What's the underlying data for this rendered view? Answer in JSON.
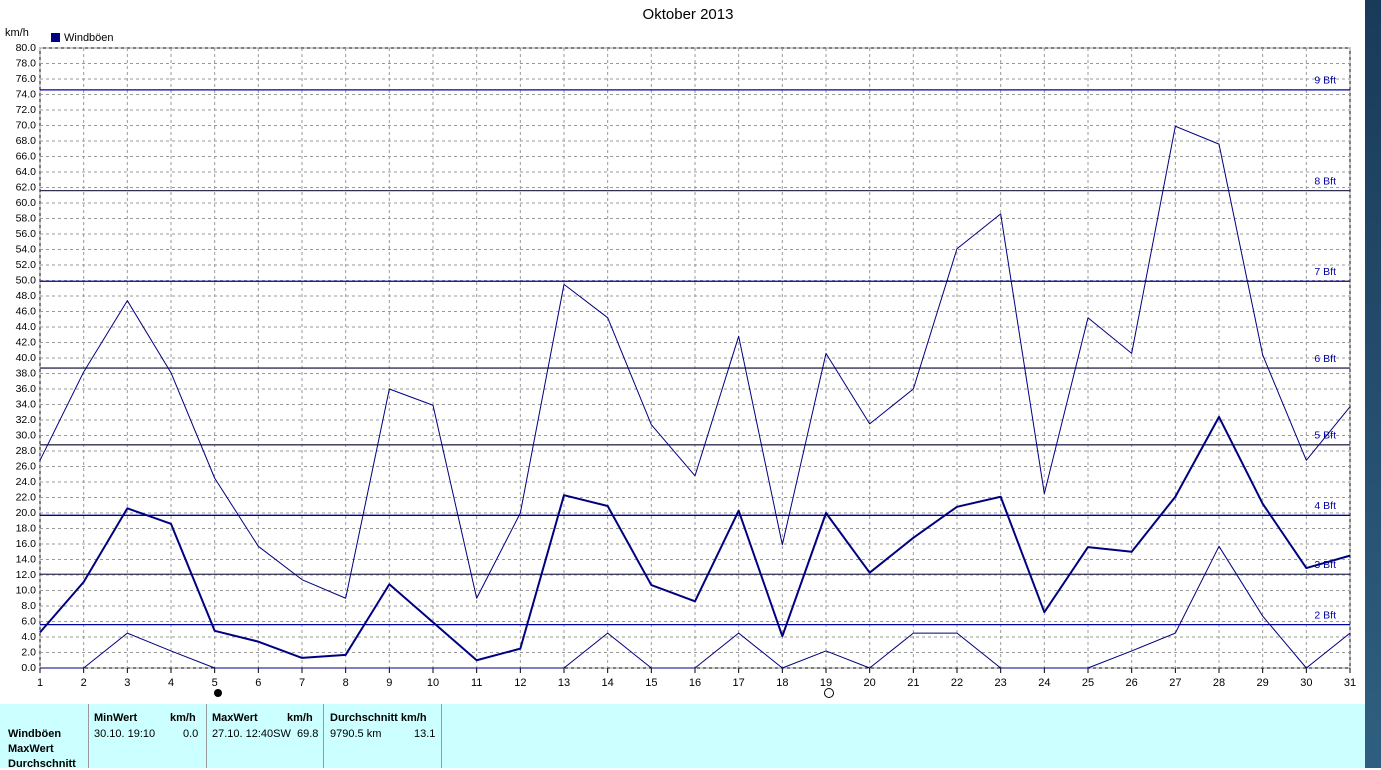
{
  "chart_data": {
    "type": "line",
    "title": "Oktober 2013",
    "y_label": "km/h",
    "legend_label": "Windböen",
    "legend_color": "#000080",
    "categories": [
      "1",
      "2",
      "3",
      "4",
      "5",
      "6",
      "7",
      "8",
      "9",
      "10",
      "11",
      "12",
      "13",
      "14",
      "15",
      "16",
      "17",
      "18",
      "19",
      "20",
      "21",
      "22",
      "23",
      "24",
      "25",
      "26",
      "27",
      "28",
      "29",
      "30",
      "31"
    ],
    "series": [
      {
        "color": "#000080",
        "width": 1,
        "values": [
          26.8,
          38.2,
          47.4,
          38.1,
          24.5,
          15.7,
          11.4,
          9.0,
          36.0,
          33.9,
          9.0,
          20.0,
          49.5,
          45.2,
          31.4,
          24.8,
          42.8,
          15.9,
          40.6,
          31.5,
          36.0,
          54.1,
          58.6,
          22.5,
          45.2,
          40.6,
          69.9,
          67.6,
          40.4,
          26.8,
          33.7
        ]
      },
      {
        "color": "#000080",
        "width": 2,
        "values": [
          4.6,
          11.1,
          20.6,
          18.6,
          4.8,
          3.4,
          1.3,
          1.7,
          10.8,
          5.9,
          1.0,
          2.5,
          22.3,
          20.9,
          10.7,
          8.6,
          20.3,
          4.1,
          20.0,
          12.3,
          16.8,
          20.8,
          22.1,
          7.2,
          15.6,
          15.0,
          22.1,
          32.4,
          21.2,
          12.9,
          14.5
        ]
      },
      {
        "color": "#000080",
        "width": 1,
        "values": [
          0,
          0,
          4.5,
          2.2,
          0,
          0,
          0,
          0,
          0,
          0,
          0,
          0,
          0,
          4.5,
          0,
          0,
          4.5,
          0,
          2.2,
          0,
          4.5,
          4.5,
          0,
          0,
          0,
          2.2,
          4.5,
          15.7,
          6.7,
          0,
          4.5
        ]
      }
    ],
    "ylim": [
      0,
      80
    ],
    "yticks": [
      {
        "value": 0,
        "label": "0.0"
      },
      {
        "value": 2,
        "label": "2.0"
      },
      {
        "value": 4,
        "label": "4.0"
      },
      {
        "value": 6,
        "label": "6.0"
      },
      {
        "value": 8,
        "label": "8.0"
      },
      {
        "value": 10,
        "label": "10.0"
      },
      {
        "value": 12,
        "label": "12.0"
      },
      {
        "value": 14,
        "label": "14.0"
      },
      {
        "value": 16,
        "label": "16.0"
      },
      {
        "value": 18,
        "label": "18.0"
      },
      {
        "value": 20,
        "label": "20.0"
      },
      {
        "value": 22,
        "label": "22.0"
      },
      {
        "value": 24,
        "label": "24.0"
      },
      {
        "value": 26,
        "label": "26.0"
      },
      {
        "value": 28,
        "label": "28.0"
      },
      {
        "value": 30,
        "label": "30.0"
      },
      {
        "value": 32,
        "label": "32.0"
      },
      {
        "value": 34,
        "label": "34.0"
      },
      {
        "value": 36,
        "label": "36.0"
      },
      {
        "value": 38,
        "label": "38.0"
      },
      {
        "value": 40,
        "label": "40.0"
      },
      {
        "value": 42,
        "label": "42.0"
      },
      {
        "value": 44,
        "label": "44.0"
      },
      {
        "value": 46,
        "label": "46.0"
      },
      {
        "value": 48,
        "label": "48.0"
      },
      {
        "value": 50,
        "label": "50.0"
      },
      {
        "value": 52,
        "label": "52.0"
      },
      {
        "value": 54,
        "label": "54.0"
      },
      {
        "value": 56,
        "label": "56.0"
      },
      {
        "value": 58,
        "label": "58.0"
      },
      {
        "value": 60,
        "label": "60.0"
      },
      {
        "value": 62,
        "label": "62.0"
      },
      {
        "value": 64,
        "label": "64.0"
      },
      {
        "value": 66,
        "label": "66.0"
      },
      {
        "value": 68,
        "label": "68.0"
      },
      {
        "value": 70,
        "label": "70.0"
      },
      {
        "value": 72,
        "label": "72.0"
      },
      {
        "value": 74,
        "label": "74.0"
      },
      {
        "value": 76,
        "label": "76.0"
      },
      {
        "value": 78,
        "label": "78.0"
      },
      {
        "value": 80,
        "label": "80.0"
      }
    ],
    "grid": true,
    "reference_lines": [
      {
        "value": 74.6,
        "label": "9 Bft",
        "color": "#0000a0"
      },
      {
        "value": 61.6,
        "label": "8 Bft",
        "color": "#303050"
      },
      {
        "value": 49.9,
        "label": "7 Bft",
        "color": "#0000a0"
      },
      {
        "value": 38.7,
        "label": "6 Bft",
        "color": "#303050"
      },
      {
        "value": 28.8,
        "label": "5 Bft",
        "color": "#303050"
      },
      {
        "value": 19.7,
        "label": "4 Bft",
        "color": "#0000a0"
      },
      {
        "value": 12.1,
        "label": "3 Bft",
        "color": "#303050"
      },
      {
        "value": 5.6,
        "label": "2 Bft",
        "color": "#0000a0"
      }
    ]
  },
  "table": {
    "row_labels": [
      "Windböen",
      "MaxWert",
      "Durchschnitt"
    ],
    "headers": [
      "MinWert",
      "km/h",
      "MaxWert",
      "km/h",
      "Durchschnitt km/h"
    ],
    "cells": [
      "30.10.  19:10",
      "0.0",
      "27.10.  12:40SW",
      "69.8",
      "9790.5 km",
      "13.1"
    ]
  }
}
